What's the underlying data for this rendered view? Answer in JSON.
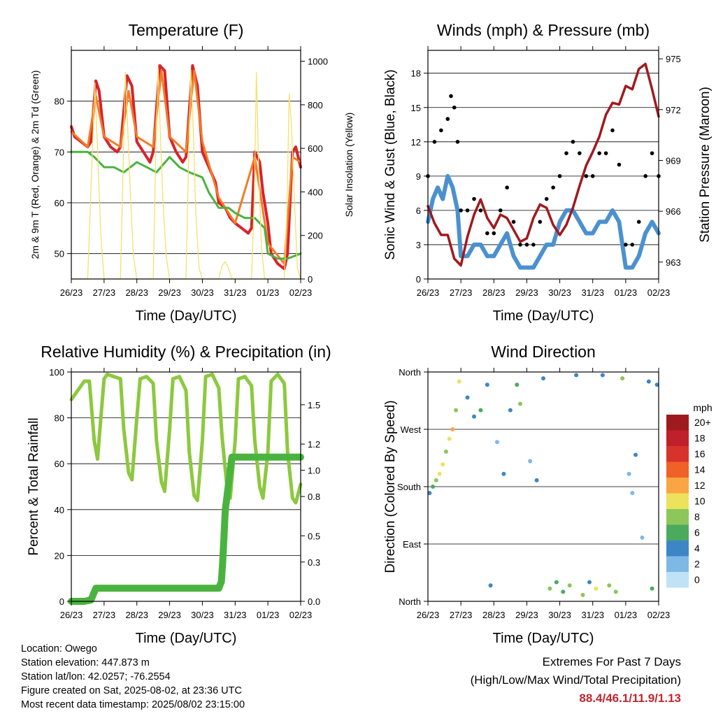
{
  "chart_data": [
    {
      "type": "line",
      "title": "Temperature (F)",
      "xlabel": "Time (Day/UTC)",
      "ylabel": "2m & 9m T (Red, Orange) & 2m Td (Green)",
      "y2label": "Solar Insolation (Yellow)",
      "x_ticks": [
        "26/23",
        "27/23",
        "28/23",
        "29/23",
        "30/23",
        "31/23",
        "01/23",
        "02/23"
      ],
      "ylim": [
        45,
        90
      ],
      "y_ticks": [
        50,
        60,
        70,
        80
      ],
      "y2lim": [
        0,
        1050
      ],
      "y2_ticks": [
        0,
        200,
        400,
        600,
        800,
        1000
      ],
      "colors": {
        "t2m": "#d7232a",
        "t9m": "#f47a26",
        "td2m": "#4ab33f",
        "solar": "#f5e06b"
      },
      "series": [
        {
          "name": "2m T",
          "axis": "left",
          "x": [
            0,
            0.1,
            0.3,
            0.5,
            0.6,
            0.75,
            0.85,
            1,
            1.2,
            1.4,
            1.5,
            1.7,
            1.85,
            2,
            2.2,
            2.4,
            2.5,
            2.7,
            2.85,
            3,
            3.2,
            3.4,
            3.5,
            3.7,
            3.85,
            4,
            4.2,
            4.4,
            4.5,
            4.7,
            4.85,
            5,
            5.2,
            5.4,
            5.5,
            5.6,
            5.75,
            5.85,
            6,
            6.1,
            6.3,
            6.5,
            6.6,
            6.75,
            6.85,
            7
          ],
          "y": [
            75,
            73,
            72,
            71,
            72,
            84,
            82,
            73,
            71,
            70,
            71,
            85,
            83,
            72,
            70,
            68,
            70,
            87,
            86,
            73,
            70,
            68,
            69,
            87,
            83,
            70,
            67,
            64,
            60,
            59,
            57,
            56,
            55,
            54,
            55,
            70,
            68,
            62,
            56,
            50,
            48,
            47,
            50,
            70,
            71,
            67
          ]
        },
        {
          "name": "9m T",
          "axis": "left",
          "x": [
            0,
            0.5,
            0.75,
            1,
            1.5,
            1.75,
            2,
            2.5,
            2.75,
            3,
            3.5,
            3.75,
            4,
            4.5,
            5,
            5.6,
            6,
            6.5,
            6.75,
            7
          ],
          "y": [
            74,
            71,
            81,
            73,
            71,
            82,
            73,
            71,
            86,
            73,
            70,
            86,
            72,
            61,
            56,
            69,
            52,
            48,
            69,
            68
          ]
        },
        {
          "name": "2m Td",
          "axis": "left",
          "x": [
            0,
            0.5,
            0.7,
            1,
            1.3,
            1.6,
            2,
            2.3,
            2.6,
            3,
            3.3,
            3.6,
            4,
            4.2,
            4.5,
            4.8,
            5,
            5.3,
            5.6,
            5.9,
            6,
            6.3,
            6.6,
            7
          ],
          "y": [
            70,
            70,
            69,
            67,
            67,
            66,
            68,
            67,
            66,
            69,
            67,
            66,
            65,
            62,
            59,
            59,
            58,
            57,
            57,
            55,
            50,
            49,
            49,
            50
          ]
        },
        {
          "name": "Solar",
          "axis": "right",
          "x": [
            0,
            0.3,
            0.5,
            0.62,
            0.72,
            0.8,
            0.9,
            1,
            1.5,
            1.58,
            1.65,
            1.72,
            1.8,
            1.9,
            2,
            2.5,
            2.58,
            2.65,
            2.72,
            2.8,
            2.9,
            3,
            3.5,
            3.58,
            3.65,
            3.72,
            3.8,
            3.9,
            4,
            4.5,
            4.6,
            4.7,
            4.8,
            4.9,
            5,
            5.5,
            5.58,
            5.65,
            5.72,
            5.8,
            5.9,
            6,
            6.5,
            6.58,
            6.65,
            6.72,
            6.8,
            6.9,
            7
          ],
          "y": [
            0,
            0,
            0,
            500,
            900,
            600,
            200,
            0,
            0,
            500,
            950,
            700,
            400,
            100,
            0,
            0,
            600,
            970,
            650,
            350,
            100,
            0,
            0,
            550,
            960,
            700,
            300,
            50,
            0,
            0,
            60,
            80,
            50,
            0,
            0,
            0,
            350,
            950,
            500,
            150,
            0,
            0,
            0,
            300,
            850,
            700,
            400,
            50,
            0
          ]
        }
      ]
    },
    {
      "type": "line",
      "title": "Winds (mph) & Pressure (mb)",
      "xlabel": "Time (Day/UTC)",
      "ylabel": "Sonic Wind & Gust (Blue, Black)",
      "y2label": "Station Pressure (Maroon)",
      "x_ticks": [
        "26/23",
        "27/23",
        "28/23",
        "29/23",
        "30/23",
        "31/23",
        "01/23",
        "02/23"
      ],
      "ylim": [
        0,
        20
      ],
      "y_ticks": [
        0,
        3,
        6,
        9,
        12,
        15,
        18
      ],
      "y2lim": [
        962,
        975.5
      ],
      "y2_ticks": [
        963,
        966,
        969,
        972,
        975
      ],
      "colors": {
        "wind": "#4b91cf",
        "gust": "#000000",
        "pressure": "#a01a1f"
      },
      "series": [
        {
          "name": "Sonic Wind",
          "axis": "left",
          "x": [
            0,
            0.15,
            0.3,
            0.45,
            0.6,
            0.75,
            0.9,
            1,
            1.2,
            1.4,
            1.6,
            1.8,
            2,
            2.2,
            2.4,
            2.6,
            2.8,
            3,
            3.2,
            3.4,
            3.6,
            3.8,
            4,
            4.2,
            4.4,
            4.6,
            4.8,
            5,
            5.2,
            5.4,
            5.6,
            5.8,
            6,
            6.2,
            6.4,
            6.6,
            6.8,
            7
          ],
          "y": [
            5,
            7,
            8,
            7,
            9,
            8,
            6,
            2,
            2,
            3,
            3,
            2,
            2,
            3,
            4,
            2,
            1,
            1,
            1,
            2,
            3,
            3,
            5,
            6,
            6,
            5,
            4,
            4,
            5,
            5,
            6,
            5,
            1,
            1,
            2,
            4,
            5,
            4
          ]
        },
        {
          "name": "Gust",
          "axis": "left",
          "x": [
            0,
            0.2,
            0.4,
            0.6,
            0.7,
            0.8,
            0.9,
            1,
            1.2,
            1.4,
            1.6,
            1.8,
            2,
            2.2,
            2.4,
            2.6,
            2.8,
            3,
            3.2,
            3.4,
            3.6,
            3.8,
            4,
            4.2,
            4.4,
            4.6,
            4.8,
            5,
            5.2,
            5.4,
            5.6,
            5.8,
            6,
            6.2,
            6.4,
            6.6,
            6.8,
            7
          ],
          "y": [
            9,
            12,
            13,
            14,
            16,
            15,
            12,
            6,
            6,
            7,
            6,
            4,
            4,
            6,
            8,
            5,
            3,
            3,
            3,
            5,
            7,
            8,
            9,
            11,
            12,
            11,
            9,
            9,
            11,
            11,
            13,
            10,
            3,
            3,
            5,
            9,
            11,
            9
          ]
        },
        {
          "name": "Station Pressure",
          "axis": "right",
          "x": [
            0,
            0.2,
            0.4,
            0.6,
            0.8,
            1,
            1.2,
            1.4,
            1.6,
            1.8,
            2,
            2.2,
            2.4,
            2.6,
            2.8,
            3,
            3.2,
            3.4,
            3.6,
            3.8,
            4,
            4.2,
            4.4,
            4.6,
            4.8,
            5,
            5.2,
            5.4,
            5.6,
            5.8,
            6,
            6.2,
            6.4,
            6.6,
            6.8,
            7
          ],
          "y": [
            966.3,
            965.3,
            964.6,
            964.6,
            963.2,
            962.8,
            964.5,
            965.8,
            966.7,
            965.6,
            965.0,
            965.8,
            965.6,
            964.9,
            964.2,
            964.4,
            965.6,
            966.4,
            966.2,
            965.2,
            964.6,
            965.2,
            966.2,
            967.5,
            968.7,
            969.5,
            970.4,
            971.7,
            972.4,
            972.3,
            973.4,
            973.2,
            974.4,
            974.7,
            973.2,
            971.6
          ]
        }
      ]
    },
    {
      "type": "line",
      "title": "Relative Humidity (%) & Precipitation (in)",
      "xlabel": "Time (Day/UTC)",
      "ylabel": "Percent & Total Rainfall",
      "x_ticks": [
        "26/23",
        "27/23",
        "28/23",
        "29/23",
        "30/23",
        "31/23",
        "01/23",
        "02/23"
      ],
      "ylim": [
        0,
        100
      ],
      "y_ticks": [
        0,
        20,
        40,
        60,
        80,
        100
      ],
      "y2lim": [
        0,
        1.75
      ],
      "y2_ticks": [
        "0.0",
        "0.3",
        "0.5",
        "0.8",
        "1.0",
        "1.2",
        "1.5"
      ],
      "colors": {
        "rh": "#8dc83e",
        "precip": "#4ab33f"
      },
      "series": [
        {
          "name": "RH",
          "axis": "left",
          "x": [
            0,
            0.2,
            0.4,
            0.55,
            0.7,
            0.8,
            0.9,
            1,
            1.1,
            1.3,
            1.5,
            1.6,
            1.75,
            1.85,
            2,
            2.1,
            2.3,
            2.5,
            2.6,
            2.75,
            2.85,
            3,
            3.1,
            3.3,
            3.5,
            3.6,
            3.75,
            3.85,
            4,
            4.1,
            4.3,
            4.5,
            4.6,
            4.75,
            4.85,
            5,
            5.1,
            5.3,
            5.5,
            5.6,
            5.75,
            5.85,
            6,
            6.1,
            6.3,
            6.5,
            6.6,
            6.75,
            6.85,
            7
          ],
          "y": [
            88,
            92,
            96,
            96,
            70,
            62,
            80,
            97,
            99,
            98,
            97,
            75,
            56,
            53,
            80,
            97,
            98,
            95,
            70,
            52,
            48,
            75,
            97,
            98,
            92,
            65,
            46,
            44,
            70,
            98,
            99,
            93,
            72,
            50,
            45,
            70,
            97,
            98,
            94,
            70,
            50,
            45,
            65,
            96,
            99,
            95,
            65,
            45,
            43,
            51
          ]
        },
        {
          "name": "Total Precipitation",
          "axis": "right",
          "x": [
            0,
            0.2,
            0.4,
            0.6,
            0.75,
            0.8,
            1,
            2,
            3,
            4,
            4.5,
            4.58,
            4.62,
            4.66,
            4.7,
            4.75,
            4.8,
            4.85,
            4.9,
            5,
            5.2,
            6,
            7
          ],
          "y": [
            0,
            0,
            0,
            0.01,
            0.1,
            0.1,
            0.1,
            0.1,
            0.1,
            0.1,
            0.1,
            0.15,
            0.3,
            0.5,
            0.7,
            0.8,
            0.9,
            1.0,
            1.1,
            1.1,
            1.1,
            1.1,
            1.1
          ]
        }
      ]
    },
    {
      "type": "scatter",
      "title": "Wind Direction",
      "xlabel": "Time (Day/UTC)",
      "ylabel": "Direction (Colored By Speed)",
      "x_ticks": [
        "26/23",
        "27/23",
        "28/23",
        "29/23",
        "30/23",
        "31/23",
        "01/23",
        "02/23"
      ],
      "y_ticks": [
        "North",
        "East",
        "South",
        "West",
        "North"
      ],
      "ylim": [
        0,
        360
      ],
      "colorbar": {
        "title": "mph",
        "labels": [
          "20+",
          "18",
          "16",
          "14",
          "12",
          "10",
          "8",
          "6",
          "4",
          "2",
          "0"
        ],
        "colors": [
          "#9e1a1f",
          "#c0202a",
          "#d8322c",
          "#ef6127",
          "#f9a544",
          "#ece25c",
          "#8dc65a",
          "#4caa5f",
          "#3d86c6",
          "#7eb9e6",
          "#bfe2f7"
        ]
      },
      "points": [
        {
          "x": 0.05,
          "dir": 170,
          "speed": 4
        },
        {
          "x": 0.15,
          "dir": 180,
          "speed": 6
        },
        {
          "x": 0.25,
          "dir": 190,
          "speed": 8
        },
        {
          "x": 0.35,
          "dir": 200,
          "speed": 9
        },
        {
          "x": 0.45,
          "dir": 215,
          "speed": 10
        },
        {
          "x": 0.55,
          "dir": 235,
          "speed": 8
        },
        {
          "x": 0.65,
          "dir": 255,
          "speed": 10
        },
        {
          "x": 0.75,
          "dir": 270,
          "speed": 11
        },
        {
          "x": 0.85,
          "dir": 300,
          "speed": 8
        },
        {
          "x": 0.95,
          "dir": 345,
          "speed": 9
        },
        {
          "x": 1.2,
          "dir": 320,
          "speed": 4
        },
        {
          "x": 1.4,
          "dir": 290,
          "speed": 3
        },
        {
          "x": 1.6,
          "dir": 300,
          "speed": 5
        },
        {
          "x": 1.8,
          "dir": 340,
          "speed": 3
        },
        {
          "x": 1.9,
          "dir": 25,
          "speed": 3
        },
        {
          "x": 2.1,
          "dir": 250,
          "speed": 2
        },
        {
          "x": 2.3,
          "dir": 200,
          "speed": 3
        },
        {
          "x": 2.5,
          "dir": 300,
          "speed": 4
        },
        {
          "x": 2.7,
          "dir": 340,
          "speed": 6
        },
        {
          "x": 2.8,
          "dir": 310,
          "speed": 7
        },
        {
          "x": 3.1,
          "dir": 220,
          "speed": 2
        },
        {
          "x": 3.3,
          "dir": 190,
          "speed": 3
        },
        {
          "x": 3.5,
          "dir": 350,
          "speed": 4
        },
        {
          "x": 3.7,
          "dir": 20,
          "speed": 7
        },
        {
          "x": 3.9,
          "dir": 30,
          "speed": 6
        },
        {
          "x": 4.1,
          "dir": 15,
          "speed": 6
        },
        {
          "x": 4.3,
          "dir": 25,
          "speed": 8
        },
        {
          "x": 4.5,
          "dir": 355,
          "speed": 3
        },
        {
          "x": 4.7,
          "dir": 10,
          "speed": 8
        },
        {
          "x": 4.9,
          "dir": 30,
          "speed": 4
        },
        {
          "x": 5.1,
          "dir": 20,
          "speed": 9
        },
        {
          "x": 5.3,
          "dir": 355,
          "speed": 3
        },
        {
          "x": 5.5,
          "dir": 25,
          "speed": 8
        },
        {
          "x": 5.7,
          "dir": 15,
          "speed": 7
        },
        {
          "x": 5.9,
          "dir": 350,
          "speed": 8
        },
        {
          "x": 6.1,
          "dir": 200,
          "speed": 2
        },
        {
          "x": 6.2,
          "dir": 170,
          "speed": 2
        },
        {
          "x": 6.3,
          "dir": 230,
          "speed": 3
        },
        {
          "x": 6.5,
          "dir": 100,
          "speed": 2
        },
        {
          "x": 6.7,
          "dir": 345,
          "speed": 4
        },
        {
          "x": 6.8,
          "dir": 20,
          "speed": 5
        },
        {
          "x": 6.95,
          "dir": 340,
          "speed": 4
        }
      ]
    }
  ],
  "info": {
    "location": "Location: Owego",
    "elevation": "Station elevation: 447.873 m",
    "latlon": "Station lat/lon: 42.0257; -76.2554",
    "created": "Figure created on Sat, 2025-08-02, at 23:36 UTC",
    "recent": "Most recent data timestamp: 2025/08/02 23:15:00"
  },
  "extremes": {
    "title": "Extremes For Past 7 Days",
    "subtitle": "(High/Low/Max Wind/Total Precipitation)",
    "values": "88.4/46.1/11.9/1.13",
    "value_color": "#c0262d"
  }
}
